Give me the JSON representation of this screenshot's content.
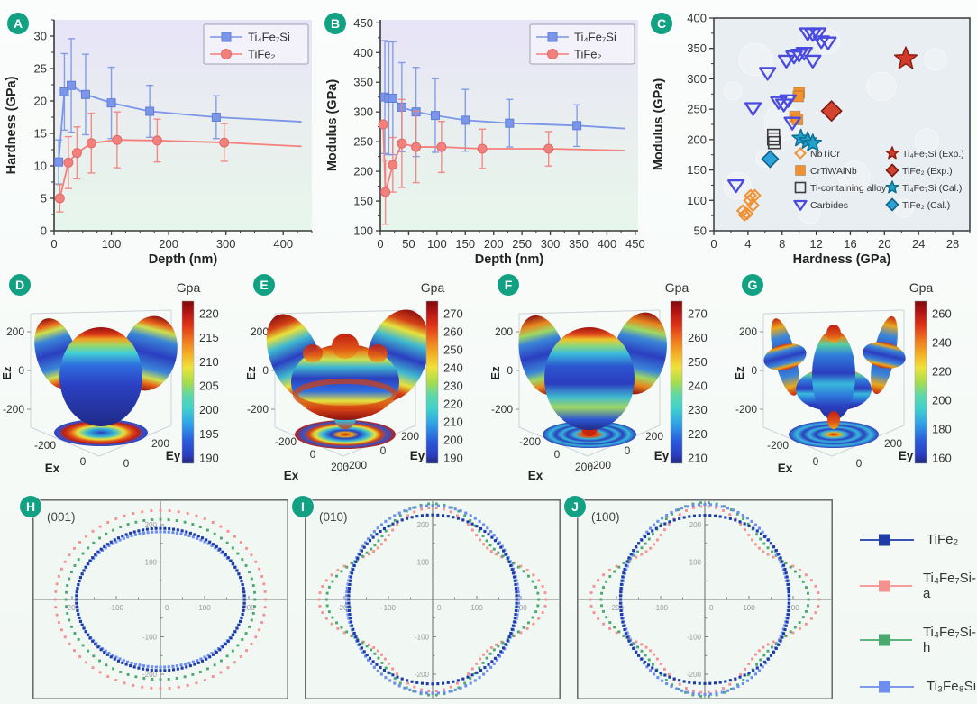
{
  "badges": {
    "A": "A",
    "B": "B",
    "C": "C",
    "D": "D",
    "E": "E",
    "F": "F",
    "G": "G",
    "H": "H",
    "I": "I",
    "J": "J"
  },
  "colors": {
    "badge": "#12a182",
    "axis": "#3a3a3a",
    "blue_series": "#7b95e8",
    "red_series": "#f4807e",
    "panelA_bg_top": "#e8e4f8",
    "panelA_bg_bottom": "#e7f6ec",
    "panelC_bg": "#e9eef2"
  },
  "chart_data": [
    {
      "id": "A",
      "type": "line",
      "xlabel": "Depth (nm)",
      "ylabel": "Hardness (GPa)",
      "xlim": [
        0,
        450
      ],
      "ylim": [
        0,
        32.5
      ],
      "xticks": [
        0,
        100,
        200,
        300,
        400
      ],
      "yticks": [
        0,
        5,
        10,
        15,
        20,
        25,
        30
      ],
      "xminor": 25,
      "yminor": 2.5,
      "series": [
        {
          "name": "Ti₄Fe₇Si",
          "color": "#7b95e8",
          "edge": "#5f7fd8",
          "marker": "square",
          "x": [
            8,
            18,
            30,
            55,
            100,
            167,
            283
          ],
          "y": [
            10.6,
            21.4,
            22.4,
            21.0,
            19.7,
            18.4,
            17.5
          ],
          "yerr": [
            3.4,
            5.9,
            7.2,
            6.2,
            5.5,
            4.0,
            3.3
          ],
          "line_end": {
            "x": 432,
            "y": 16.8
          }
        },
        {
          "name": "TiFe₂",
          "color": "#f4807e",
          "edge": "#e06a68",
          "marker": "circle",
          "x": [
            10,
            25,
            40,
            65,
            110,
            180,
            297
          ],
          "y": [
            5.0,
            10.5,
            12.0,
            13.5,
            14.0,
            13.9,
            13.6
          ],
          "yerr": [
            2.1,
            4.0,
            4.0,
            4.6,
            4.3,
            3.3,
            2.9
          ],
          "line_end": {
            "x": 432,
            "y": 13.0
          }
        }
      ]
    },
    {
      "id": "B",
      "type": "line",
      "xlabel": "Depth (nm)",
      "ylabel": "Modulus (GPa)",
      "xlim": [
        0,
        455
      ],
      "ylim": [
        100,
        455
      ],
      "xticks": [
        0,
        50,
        100,
        150,
        200,
        250,
        300,
        350,
        400,
        450
      ],
      "yticks": [
        100,
        150,
        200,
        250,
        300,
        350,
        400,
        450
      ],
      "xminor": 25,
      "yminor": 25,
      "series": [
        {
          "name": "Ti₄Fe₇Si",
          "color": "#7b95e8",
          "edge": "#5f7fd8",
          "marker": "square",
          "x": [
            8,
            15,
            22,
            38,
            63,
            97,
            150,
            228,
            347
          ],
          "y": [
            325,
            323,
            323,
            308,
            300,
            294,
            286,
            281,
            277
          ],
          "yerr": [
            95,
            95,
            95,
            75,
            75,
            62,
            52,
            40,
            35
          ],
          "line_end": {
            "x": 432,
            "y": 272
          }
        },
        {
          "name": "TiFe₂",
          "color": "#f4807e",
          "edge": "#e06a68",
          "marker": "circle",
          "x": [
            5,
            9,
            22,
            38,
            63,
            108,
            180,
            297
          ],
          "y": [
            279,
            165,
            211,
            247,
            241,
            241,
            238,
            238
          ],
          "yerr": [
            0,
            54,
            46,
            74,
            60,
            43,
            33,
            29
          ],
          "line_end": {
            "x": 432,
            "y": 235
          }
        }
      ]
    },
    {
      "id": "C",
      "type": "scatter",
      "xlabel": "Hardness (GPa)",
      "ylabel": "Modulus (GPa)",
      "xlim": [
        0,
        30
      ],
      "ylim": [
        50,
        400
      ],
      "xticks": [
        0,
        4,
        8,
        12,
        16,
        20,
        24,
        28
      ],
      "yticks": [
        50,
        100,
        150,
        200,
        250,
        300,
        350,
        400
      ],
      "xminor": 2,
      "yminor": 25,
      "groups": [
        {
          "name": "NbTiCr",
          "marker": "diamond-open",
          "color": "#f09132",
          "points": [
            [
              3.4,
              83
            ],
            [
              3.6,
              76
            ],
            [
              3.9,
              78
            ],
            [
              4.2,
              100
            ],
            [
              4.3,
              108
            ],
            [
              4.8,
              108
            ],
            [
              4.6,
              92
            ]
          ]
        },
        {
          "name": "CrTiWAlNb",
          "marker": "square-filled",
          "color": "#f09132",
          "points": [
            [
              10.0,
              277
            ],
            [
              9.9,
              271
            ],
            [
              9.5,
              238
            ],
            [
              9.8,
              233
            ]
          ]
        },
        {
          "name": "Ti-containing alloy",
          "marker": "square-open",
          "color": "#3c3c3c",
          "points": [
            [
              7.0,
              207
            ],
            [
              7.0,
              201
            ],
            [
              7.1,
              195
            ]
          ]
        },
        {
          "name": "Carbides",
          "marker": "triangle-open",
          "color": "#4a4ae0",
          "points": [
            [
              2.6,
              125
            ],
            [
              4.6,
              252
            ],
            [
              6.3,
              310
            ],
            [
              7.6,
              262
            ],
            [
              8.2,
              258
            ],
            [
              8.7,
              265
            ],
            [
              8.5,
              330
            ],
            [
              9.4,
              337
            ],
            [
              10.0,
              340
            ],
            [
              10.6,
              343
            ],
            [
              11.6,
              330
            ],
            [
              11.0,
              375
            ],
            [
              11.6,
              374
            ],
            [
              12.2,
              375
            ],
            [
              12.6,
              362
            ],
            [
              13.4,
              360
            ],
            [
              9.2,
              228
            ]
          ]
        },
        {
          "name": "Ti₄Fe₇Si (Exp.)",
          "marker": "star-filled",
          "color": "#d23b28",
          "edge": "#8c1f14",
          "points": [
            [
              22.5,
              333
            ]
          ]
        },
        {
          "name": "TiFe₂ (Exp.)",
          "marker": "diamond-filled",
          "color": "#d24330",
          "edge": "#7a1a10",
          "points": [
            [
              13.8,
              247
            ]
          ]
        },
        {
          "name": "Ti₄Fe₇Si (Cal.)",
          "marker": "star-filled",
          "color": "#21a2cb",
          "edge": "#0e6f93",
          "points": [
            [
              10.2,
              202
            ],
            [
              11.0,
              198
            ],
            [
              11.6,
              194
            ]
          ]
        },
        {
          "name": "TiFe₂ (Cal.)",
          "marker": "diamond-filled",
          "color": "#2aa4d8",
          "edge": "#11608a",
          "points": [
            [
              6.6,
              168
            ]
          ]
        }
      ]
    },
    {
      "id": "D",
      "type": "surface3d",
      "shape": "sphere",
      "colorbar_label": "Gpa",
      "colorbar_ticks": [
        220,
        215,
        210,
        205,
        200,
        195,
        190
      ],
      "axes": {
        "x": "Ex",
        "y": "Ey",
        "z": "Ez"
      },
      "xticks": [
        "-200",
        "0"
      ],
      "yticks": [
        "0",
        "200"
      ],
      "zticks": [
        "200",
        "0",
        "-200"
      ]
    },
    {
      "id": "E",
      "type": "surface3d",
      "shape": "mushroom",
      "colorbar_label": "Gpa",
      "colorbar_ticks": [
        270,
        260,
        250,
        240,
        230,
        220,
        210,
        200,
        190
      ],
      "axes": {
        "x": "Ex",
        "y": "Ey",
        "z": "Ez"
      },
      "xticks": [
        "-200",
        "0",
        "200"
      ],
      "yticks": [
        "-200",
        "0",
        "200"
      ],
      "zticks": [
        "200",
        "0",
        "-200"
      ]
    },
    {
      "id": "F",
      "type": "surface3d",
      "shape": "rounded",
      "colorbar_label": "Gpa",
      "colorbar_ticks": [
        270,
        260,
        250,
        240,
        230,
        220,
        210
      ],
      "axes": {
        "x": "Ex",
        "y": "Ey",
        "z": "Ez"
      },
      "xticks": [
        "-200",
        "0",
        "200"
      ],
      "yticks": [
        "-200",
        "0",
        "200"
      ],
      "zticks": [
        "200",
        "0",
        "-200"
      ]
    },
    {
      "id": "G",
      "type": "surface3d",
      "shape": "spindle",
      "colorbar_label": "Gpa",
      "colorbar_ticks": [
        260,
        240,
        220,
        200,
        180,
        160
      ],
      "axes": {
        "x": "Ex",
        "y": "Ey",
        "z": "Ez"
      },
      "xticks": [
        "-200",
        "0"
      ],
      "yticks": [
        "0",
        "200"
      ],
      "zticks": [
        "200",
        "0",
        "-200"
      ]
    },
    {
      "id": "H",
      "type": "polar",
      "annotation": "(001)",
      "axis_ticks": [
        -200,
        -100,
        0,
        100,
        200
      ],
      "series": [
        {
          "name": "Ti₄Fe₇Si-a",
          "color": "#f5918f",
          "c": [
            238,
            0,
            0
          ],
          "step": 5
        },
        {
          "name": "Ti₄Fe₇Si-h",
          "color": "#4aa96c",
          "c": [
            214,
            0,
            0
          ],
          "step": 5
        },
        {
          "name": "Ti₃Fe₈Si",
          "color": "#6d8df0",
          "c": [
            186,
            5,
            0
          ],
          "step": 3
        },
        {
          "name": "TiFe₂",
          "color": "#1e3ca8",
          "c": [
            190,
            0,
            0
          ],
          "step": 3
        }
      ]
    },
    {
      "id": "I",
      "type": "polar",
      "annotation": "(010)",
      "axis_ticks": [
        -200,
        -100,
        0,
        100,
        200
      ],
      "series": [
        {
          "name": "Ti₄Fe₇Si-a",
          "color": "#f5918f",
          "c": [
            218,
            6,
            33
          ],
          "step": 4
        },
        {
          "name": "Ti₄Fe₇Si-h",
          "color": "#4aa96c",
          "c": [
            221,
            -8,
            27
          ],
          "step": 4
        },
        {
          "name": "Ti₃Fe₈Si",
          "color": "#6d8df0",
          "c": [
            219,
            -28,
            4
          ],
          "step": 3
        },
        {
          "name": "TiFe₂",
          "color": "#1e3ca8",
          "c": [
            209,
            -18,
            -1
          ],
          "step": 3
        }
      ]
    },
    {
      "id": "J",
      "type": "polar",
      "annotation": "(100)",
      "axis_ticks": [
        -200,
        -100,
        0,
        100,
        200
      ],
      "series": [
        {
          "name": "Ti₄Fe₇Si-a",
          "color": "#f5918f",
          "c": [
            219,
            5,
            35
          ],
          "step": 4
        },
        {
          "name": "Ti₄Fe₇Si-h",
          "color": "#4aa96c",
          "c": [
            223,
            -12,
            24
          ],
          "step": 4
        },
        {
          "name": "Ti₃Fe₈Si",
          "color": "#6d8df0",
          "c": [
            217,
            -32,
            5
          ],
          "step": 3
        },
        {
          "name": "TiFe₂",
          "color": "#1e3ca8",
          "c": [
            210,
            -17,
            -2
          ],
          "step": 3
        }
      ]
    }
  ],
  "legend_hij": {
    "items": [
      {
        "label": "TiFe₂",
        "color": "#1e3ca8"
      },
      {
        "label": "Ti₄Fe₇Si-a",
        "color": "#f5918f"
      },
      {
        "label": "Ti₄Fe₇Si-h",
        "color": "#4aa96c"
      },
      {
        "label": "Ti₃Fe₈Si",
        "color": "#6d8df0"
      }
    ]
  }
}
